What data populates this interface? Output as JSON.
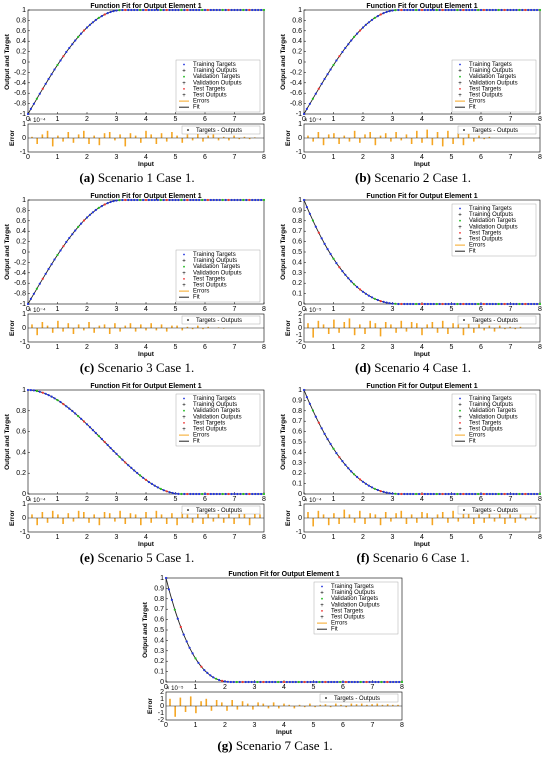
{
  "colors": {
    "fit": "#222222",
    "training": "#2233dd",
    "validation": "#22bb22",
    "test": "#ee3333",
    "errors": "#f5a623"
  },
  "panel_common": {
    "title": "Function Fit for Output Element 1",
    "ylabel_top": "Output and Target",
    "ylabel_bottom": "Error",
    "xlabel_bottom": "Input",
    "legend_top": [
      "Training Targets",
      "Training Outputs",
      "Validation Targets",
      "Validation Outputs",
      "Test Targets",
      "Test Outputs",
      "Errors",
      "Fit"
    ],
    "legend_bottom": "Targets - Outputs"
  },
  "chart_data": [
    {
      "id": "a",
      "letter": "(a)",
      "caption": "Scenario 1 Case 1.",
      "type": "line",
      "curve": "rising_sigmoid",
      "x_range": [
        0,
        8
      ],
      "ylim": [
        -1,
        1
      ],
      "yticks": [
        "1",
        "0.8",
        "0.6",
        "0.4",
        "0.2",
        "0",
        "-0.2",
        "-0.4",
        "-0.6",
        "-0.8",
        "-1"
      ],
      "xticks": [
        "0",
        "1",
        "2",
        "3",
        "4",
        "5",
        "6",
        "7",
        "8"
      ],
      "error_exponent": "× 10⁻⁴",
      "error_yticks": [
        "1",
        "0",
        "-1"
      ],
      "error_values": [
        0.1,
        -0.5,
        0.3,
        0.6,
        -0.7,
        0.2,
        -0.3,
        0.5,
        -0.4,
        0.3,
        0.6,
        -0.5,
        0.2,
        -0.6,
        0.4,
        0.5,
        -0.2,
        0.3,
        -0.7,
        0.4,
        0.2,
        -0.4,
        0.6,
        0.3,
        -0.5,
        0.4,
        -0.3,
        0.5,
        0.2,
        -0.4,
        0.3,
        -0.2,
        0.4,
        -0.3,
        0.2,
        0.3,
        -0.2,
        0.1,
        -0.2,
        0.2,
        -0.1,
        0.1,
        -0.1,
        0.05,
        0.0
      ]
    },
    {
      "id": "b",
      "letter": "(b)",
      "caption": "Scenario 2 Case 1.",
      "type": "line",
      "curve": "rising_sigmoid",
      "x_range": [
        0,
        8
      ],
      "ylim": [
        -1,
        1
      ],
      "yticks": [
        "1",
        "0.8",
        "0.6",
        "0.4",
        "0.2",
        "0",
        "-0.2",
        "-0.4",
        "-0.6",
        "-0.8",
        "-1"
      ],
      "xticks": [
        "0",
        "1",
        "2",
        "3",
        "4",
        "5",
        "6",
        "7",
        "8"
      ],
      "error_exponent": "× 10⁻⁴",
      "error_yticks": [
        "1",
        "0",
        "-1"
      ],
      "error_values": [
        0.2,
        -0.3,
        0.5,
        -0.6,
        0.3,
        0.4,
        -0.5,
        0.2,
        -0.3,
        0.6,
        -0.4,
        0.3,
        0.5,
        -0.6,
        0.2,
        0.4,
        -0.3,
        0.5,
        -0.2,
        0.3,
        -0.5,
        0.6,
        -0.4,
        0.7,
        -0.6,
        0.5,
        -0.7,
        0.6,
        -0.5,
        0.4,
        -0.6,
        0.5,
        -0.3,
        0.2,
        -0.1,
        0.1,
        0.0,
        0.0,
        0.0,
        0.0,
        0.0,
        0.0,
        0.0,
        0.0,
        0.0
      ]
    },
    {
      "id": "c",
      "letter": "(c)",
      "caption": "Scenario 3 Case 1.",
      "type": "line",
      "curve": "rising_sigmoid",
      "x_range": [
        0,
        8
      ],
      "ylim": [
        -1,
        1
      ],
      "yticks": [
        "1",
        "0.8",
        "0.6",
        "0.4",
        "0.2",
        "0",
        "-0.2",
        "-0.4",
        "-0.6",
        "-0.8",
        "-1"
      ],
      "xticks": [
        "0",
        "1",
        "2",
        "3",
        "4",
        "5",
        "6",
        "7",
        "8"
      ],
      "error_exponent": "× 10⁻⁴",
      "error_yticks": [
        "1",
        "0",
        "-1"
      ],
      "error_values": [
        0.3,
        -0.6,
        0.5,
        0.2,
        -0.4,
        0.6,
        -0.3,
        0.4,
        -0.5,
        0.3,
        -0.2,
        0.5,
        -0.4,
        0.2,
        0.3,
        -0.5,
        0.4,
        -0.3,
        0.2,
        0.4,
        -0.3,
        0.3,
        -0.2,
        0.4,
        -0.2,
        0.3,
        -0.3,
        0.2,
        0.2,
        -0.2,
        0.1,
        -0.1,
        0.2,
        -0.1,
        0.1,
        0.0,
        0.05,
        -0.05,
        0.0,
        0.0,
        0.0,
        0.0,
        0.0,
        0.0,
        0.0
      ]
    },
    {
      "id": "d",
      "letter": "(d)",
      "caption": "Scenario 4 Case 1.",
      "type": "line",
      "curve": "fast_decay",
      "x_range": [
        0,
        8
      ],
      "ylim": [
        0,
        1
      ],
      "yticks": [
        "1",
        "0.9",
        "0.8",
        "0.7",
        "0.6",
        "0.5",
        "0.4",
        "0.3",
        "0.2",
        "0.1",
        "0"
      ],
      "xticks": [
        "0",
        "1",
        "2",
        "3",
        "4",
        "5",
        "6",
        "7",
        "8"
      ],
      "error_exponent": "× 10⁻⁵",
      "error_yticks": [
        "2",
        "1",
        "0",
        "-1",
        "-2"
      ],
      "error_values": [
        0.4,
        -0.8,
        0.6,
        0.3,
        -0.5,
        0.7,
        -0.4,
        0.5,
        0.8,
        -0.6,
        0.3,
        -0.5,
        0.6,
        0.4,
        -0.7,
        0.5,
        0.3,
        -0.4,
        0.6,
        -0.3,
        0.5,
        0.4,
        -0.6,
        0.3,
        0.5,
        -0.4,
        0.6,
        -0.5,
        0.4,
        0.3,
        -0.6,
        0.5,
        -0.4,
        0.3,
        -0.2,
        0.2,
        -0.3,
        0.2,
        -0.1,
        0.1,
        -0.1,
        0.1,
        0.0,
        0.0,
        0.0
      ]
    },
    {
      "id": "e",
      "letter": "(e)",
      "caption": "Scenario 5 Case 1.",
      "type": "line",
      "curve": "slow_decay",
      "x_range": [
        0,
        8
      ],
      "ylim": [
        0,
        1
      ],
      "yticks": [
        "1",
        "0.8",
        "0.6",
        "0.4",
        "0.2",
        "0"
      ],
      "xticks": [
        "0",
        "1",
        "2",
        "3",
        "4",
        "5",
        "6",
        "7",
        "8"
      ],
      "error_exponent": "× 10⁻⁴",
      "error_yticks": [
        "1",
        "0",
        "-1"
      ],
      "error_values": [
        0.3,
        -0.6,
        0.5,
        -0.4,
        0.6,
        0.3,
        -0.5,
        0.4,
        -0.3,
        0.6,
        0.5,
        -0.4,
        0.3,
        -0.6,
        0.5,
        0.4,
        -0.3,
        0.6,
        -0.5,
        0.4,
        0.3,
        -0.6,
        0.5,
        -0.4,
        0.6,
        0.3,
        -0.5,
        0.4,
        -0.6,
        0.5,
        0.3,
        -0.4,
        0.6,
        -0.5,
        0.4,
        -0.3,
        0.5,
        -0.4,
        0.6,
        -0.5,
        0.4,
        0.6,
        -0.6,
        0.5,
        0.3
      ]
    },
    {
      "id": "f",
      "letter": "(f)",
      "caption": "Scenario 6 Case 1.",
      "type": "line",
      "curve": "fast_decay",
      "x_range": [
        0,
        8
      ],
      "ylim": [
        0,
        1
      ],
      "yticks": [
        "1",
        "0.9",
        "0.8",
        "0.7",
        "0.6",
        "0.5",
        "0.4",
        "0.3",
        "0.2",
        "0.1",
        "0"
      ],
      "xticks": [
        "0",
        "1",
        "2",
        "3",
        "4",
        "5",
        "6",
        "7",
        "8"
      ],
      "error_exponent": "× 10⁻⁴",
      "error_yticks": [
        "1",
        "0",
        "-1"
      ],
      "error_values": [
        0.5,
        -0.7,
        0.6,
        0.3,
        -0.6,
        0.4,
        -0.5,
        0.7,
        0.3,
        -0.4,
        0.6,
        -0.5,
        0.4,
        0.3,
        -0.6,
        0.5,
        -0.3,
        0.4,
        0.6,
        -0.5,
        0.3,
        -0.4,
        0.5,
        0.4,
        -0.6,
        0.3,
        0.5,
        -0.4,
        0.6,
        -0.3,
        0.4,
        0.5,
        -0.5,
        0.3,
        -0.4,
        0.5,
        -0.3,
        0.4,
        -0.5,
        0.3,
        -0.4,
        0.3,
        -0.2,
        0.2,
        -0.1
      ]
    },
    {
      "id": "g",
      "letter": "(g)",
      "caption": "Scenario 7 Case 1.",
      "type": "line",
      "curve": "very_fast_decay",
      "x_range": [
        0,
        8
      ],
      "ylim": [
        0,
        1
      ],
      "yticks": [
        "1",
        "0.9",
        "0.8",
        "0.7",
        "0.6",
        "0.5",
        "0.4",
        "0.3",
        "0.2",
        "0.1",
        "0"
      ],
      "xticks": [
        "0",
        "1",
        "2",
        "3",
        "4",
        "5",
        "6",
        "7",
        "8"
      ],
      "error_exponent": "× 10⁻⁵",
      "error_yticks": [
        "2",
        "1",
        "0",
        "-1",
        "-2"
      ],
      "error_values": [
        0.6,
        -0.9,
        0.7,
        -0.5,
        0.8,
        -0.6,
        0.4,
        0.6,
        -0.4,
        0.5,
        0.3,
        -0.4,
        0.5,
        -0.3,
        0.4,
        0.2,
        -0.3,
        0.3,
        0.2,
        -0.2,
        0.3,
        -0.2,
        0.2,
        0.1,
        -0.2,
        0.1,
        -0.1,
        0.2,
        -0.1,
        0.1,
        0.15,
        -0.1,
        0.2,
        0.1,
        -0.1,
        0.2,
        0.15,
        0.2,
        0.1,
        0.15,
        0.2,
        0.1,
        0.15,
        0.1,
        0.1
      ]
    }
  ]
}
